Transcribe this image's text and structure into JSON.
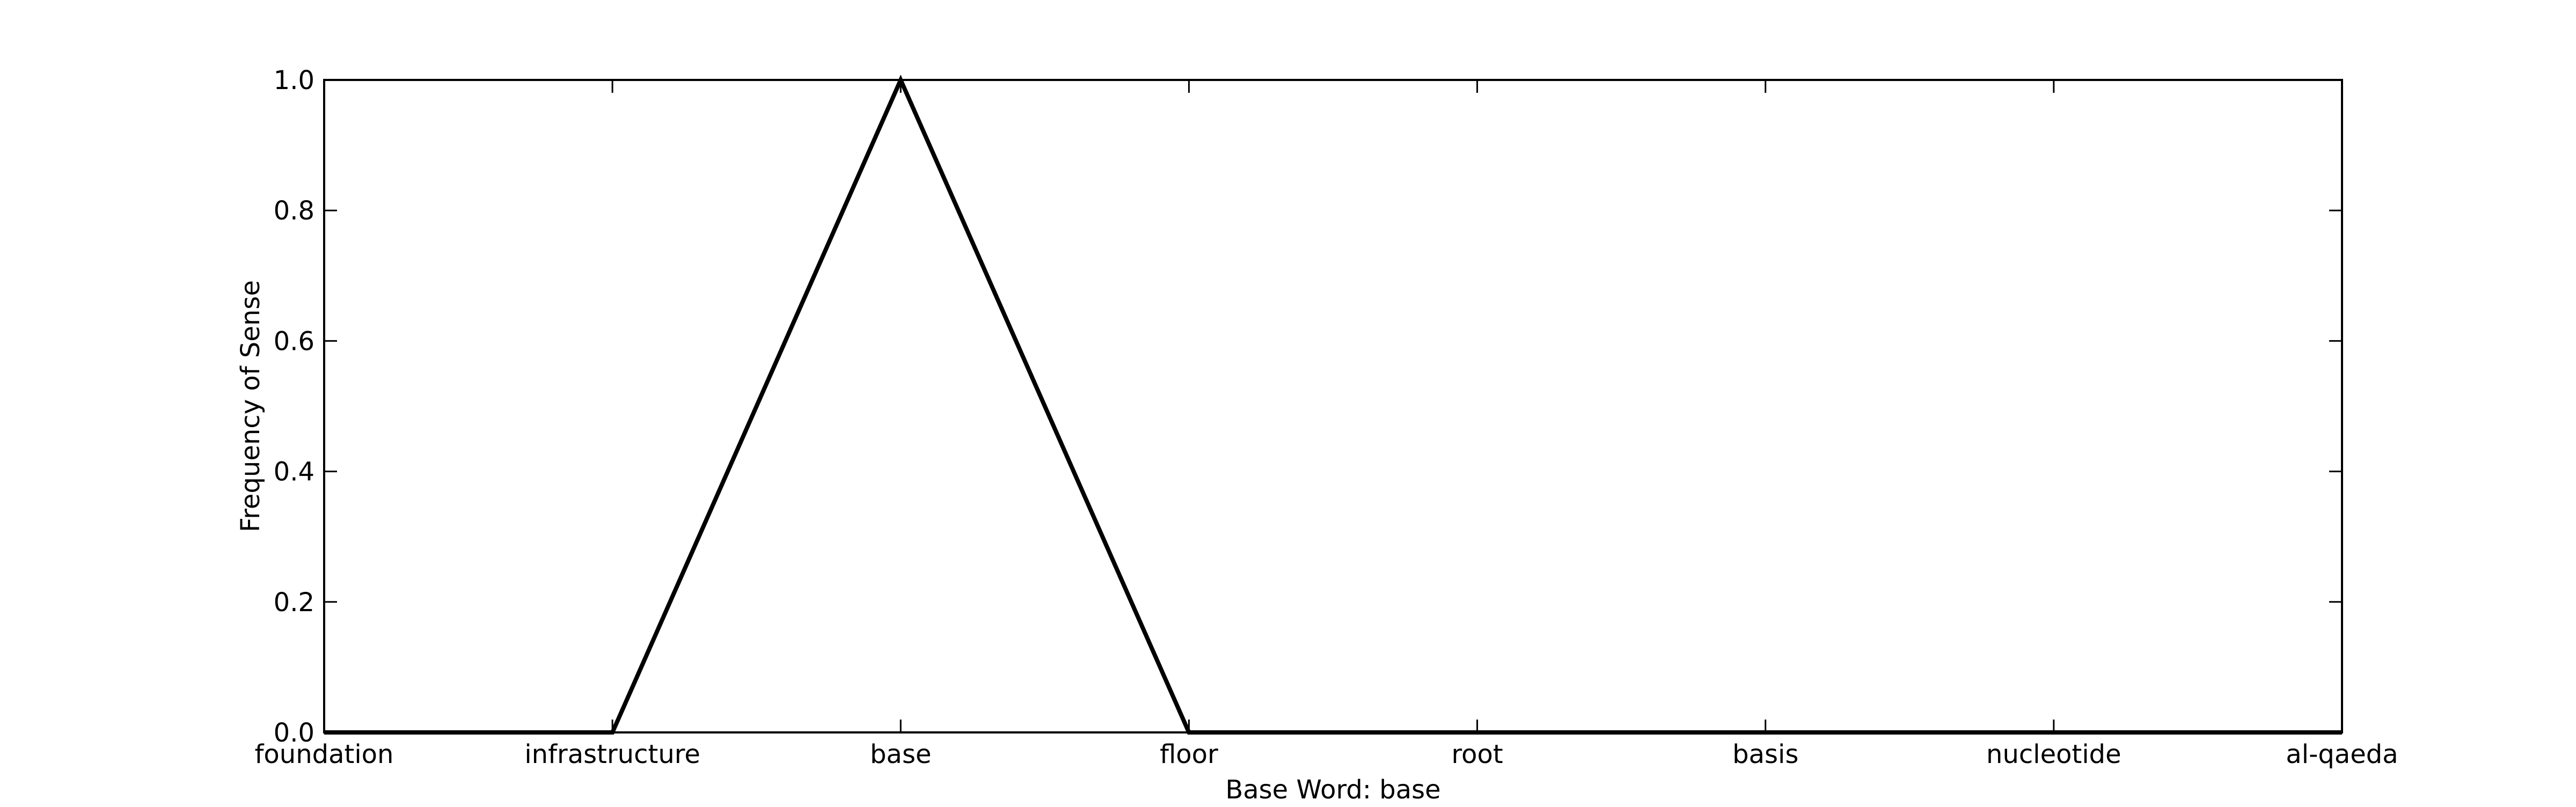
{
  "chart_data": {
    "type": "line",
    "title": "",
    "xlabel": "Base Word: base",
    "ylabel": "Frequency of Sense",
    "categories": [
      "foundation",
      "infrastructure",
      "base",
      "floor",
      "root",
      "basis",
      "nucleotide",
      "al-qaeda"
    ],
    "series": [
      {
        "values": [
          0,
          0,
          1,
          0,
          0,
          0,
          0,
          0
        ]
      }
    ],
    "ylim": [
      0,
      1
    ],
    "yticks": [
      "0.0",
      "0.2",
      "0.4",
      "0.6",
      "0.8",
      "1.0"
    ],
    "grid": false,
    "legend": "none",
    "line_color": "#000000"
  }
}
